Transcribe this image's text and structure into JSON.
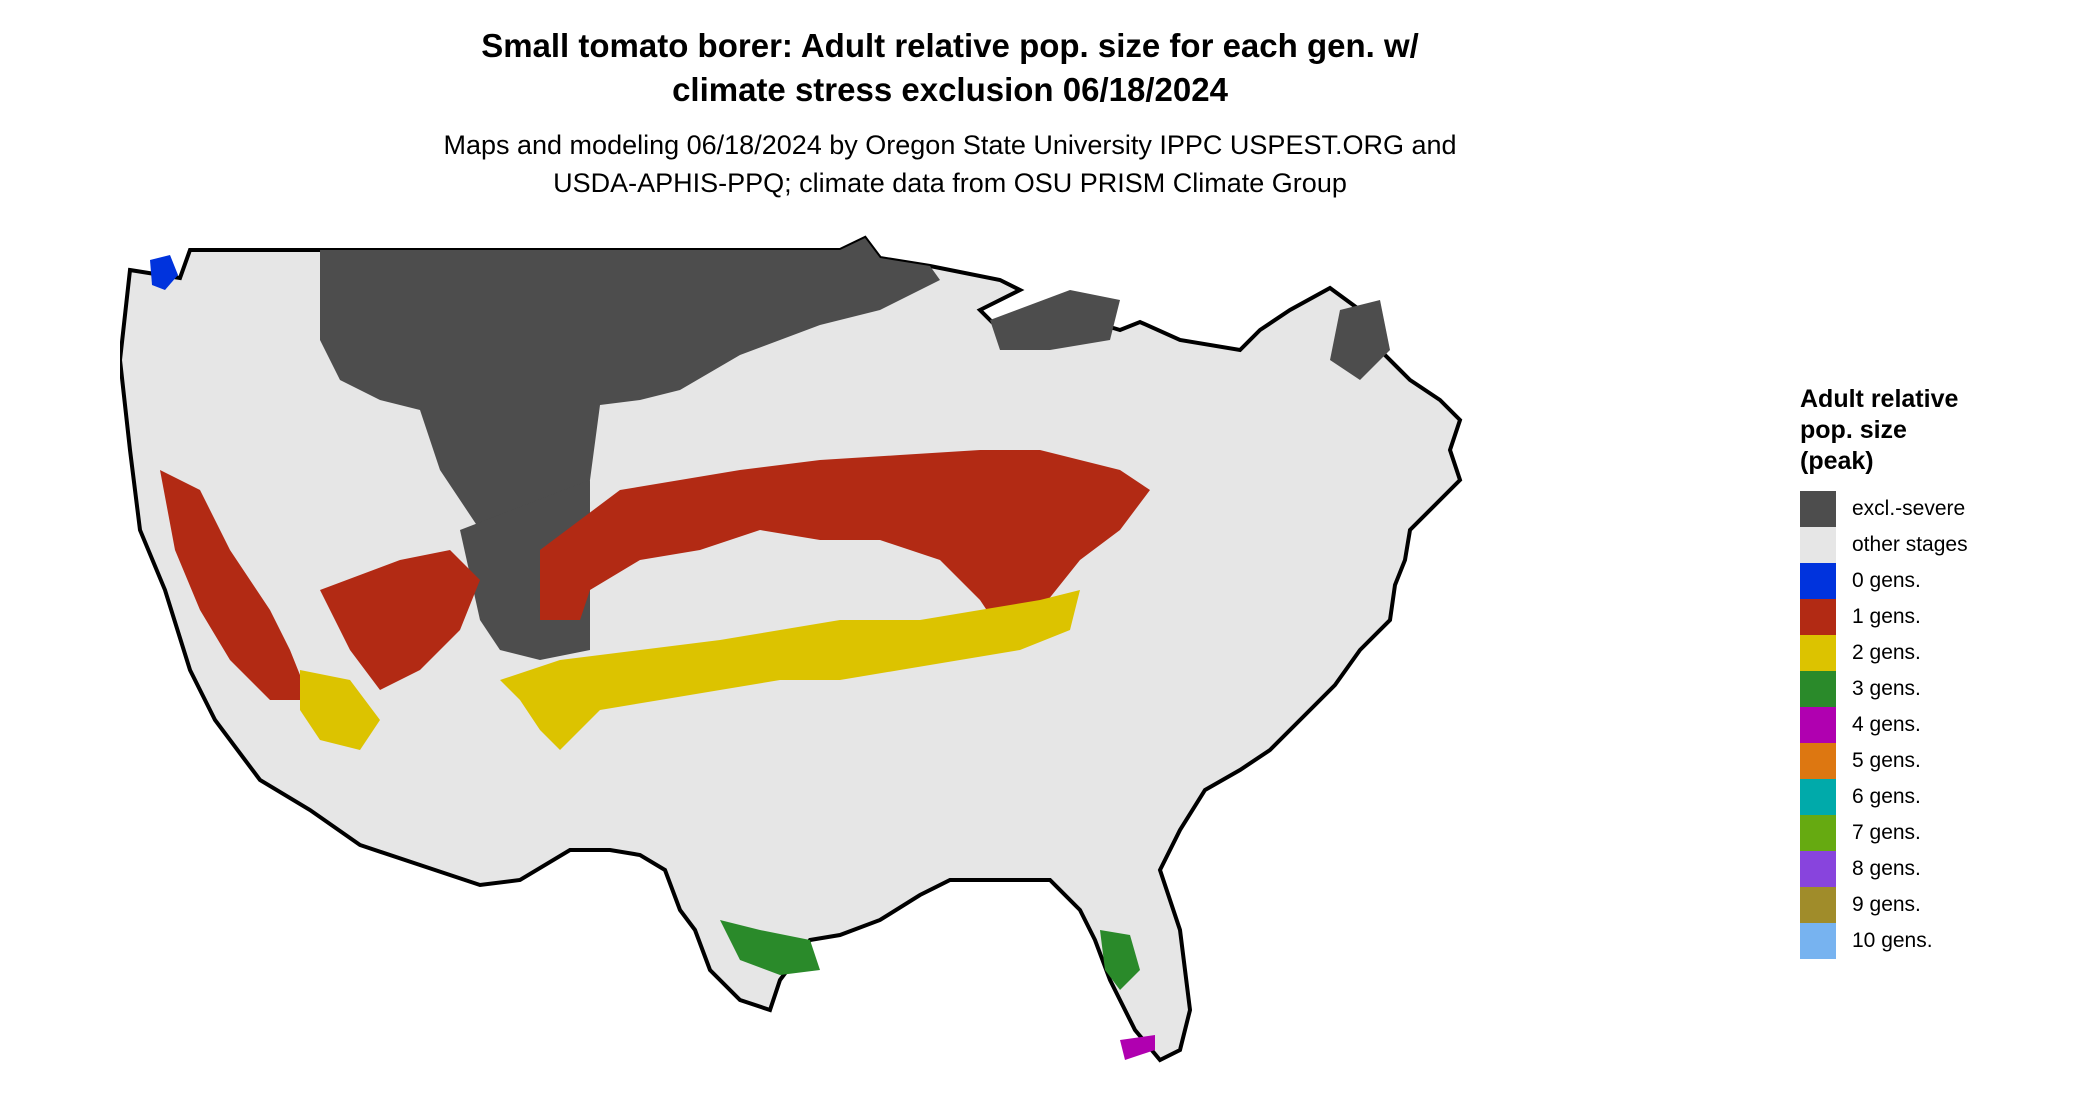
{
  "title": {
    "line1": "Small tomato borer: Adult relative pop. size for each gen. w/",
    "line2": "climate stress exclusion 06/18/2024"
  },
  "subtitle": {
    "line1": "Maps and modeling 06/18/2024 by Oregon State University IPPC USPEST.ORG and",
    "line2": "USDA-APHIS-PPQ; climate data from OSU PRISM Climate Group"
  },
  "legend": {
    "title_line1": "Adult relative",
    "title_line2": "pop. size",
    "title_line3": "(peak)",
    "items": [
      {
        "label": "excl.-severe",
        "color": "#4d4d4d"
      },
      {
        "label": "other stages",
        "color": "#e6e6e6"
      },
      {
        "label": "0 gens.",
        "color": "#0033dd"
      },
      {
        "label": "1 gens.",
        "color": "#b22a14"
      },
      {
        "label": "2 gens.",
        "color": "#dcc300"
      },
      {
        "label": "3 gens.",
        "color": "#2a8a2a"
      },
      {
        "label": "4 gens.",
        "color": "#b000b0"
      },
      {
        "label": "5 gens.",
        "color": "#dd7711"
      },
      {
        "label": "6 gens.",
        "color": "#00aaaa"
      },
      {
        "label": "7 gens.",
        "color": "#66aa11"
      },
      {
        "label": "8 gens.",
        "color": "#8844dd"
      },
      {
        "label": "9 gens.",
        "color": "#a08c2a"
      },
      {
        "label": "10 gens.",
        "color": "#77b3f0"
      }
    ]
  }
}
